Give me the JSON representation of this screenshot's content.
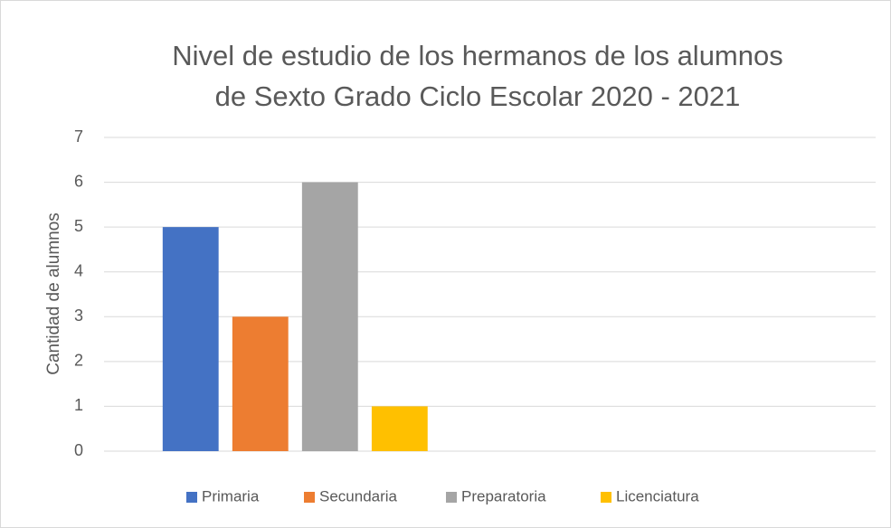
{
  "chart_data": {
    "type": "bar",
    "title": [
      "Nivel de estudio de los hermanos de los alumnos",
      "de Sexto Grado Ciclo Escolar 2020 - 2021"
    ],
    "y_label": "Cantidad de alumnos",
    "categories": [
      null,
      null
    ],
    "series": [
      {
        "name": "Primaria",
        "color": "#4472c4",
        "values": [
          5,
          null
        ]
      },
      {
        "name": "Secundaria",
        "color": "#ed7d31",
        "values": [
          3,
          null
        ]
      },
      {
        "name": "Preparatoria",
        "color": "#a5a5a5",
        "values": [
          6,
          null
        ]
      },
      {
        "name": "Licenciatura",
        "color": "#ffc000",
        "values": [
          1,
          null
        ]
      }
    ],
    "ylim": [
      0,
      7
    ],
    "yticks": [
      0,
      1,
      2,
      3,
      4,
      5,
      6,
      7
    ],
    "grid": true,
    "legend": "bottom"
  }
}
